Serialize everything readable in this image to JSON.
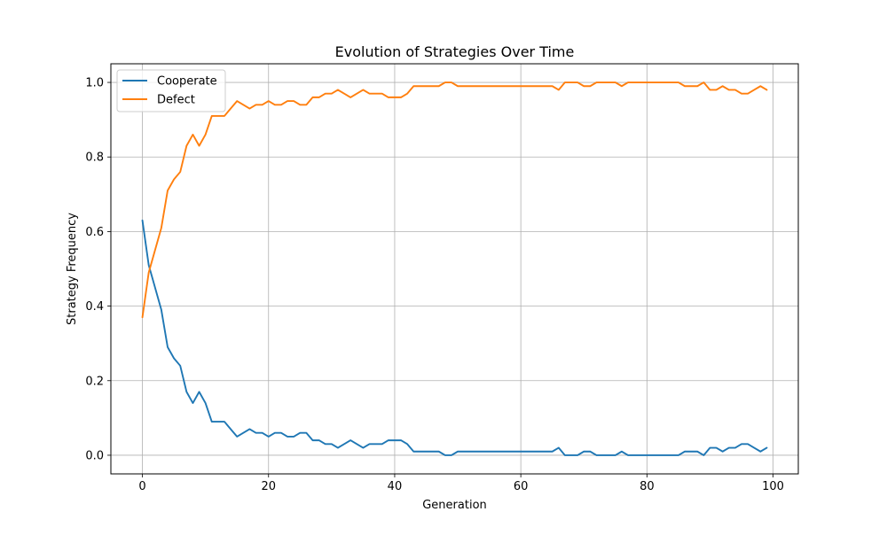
{
  "chart_data": {
    "type": "line",
    "title": "Evolution of Strategies Over Time",
    "xlabel": "Generation",
    "ylabel": "Strategy Frequency",
    "xlim": [
      -5,
      104
    ],
    "ylim": [
      -0.05,
      1.05
    ],
    "xticks": [
      0,
      20,
      40,
      60,
      80,
      100
    ],
    "yticks": [
      0.0,
      0.2,
      0.4,
      0.6,
      0.8,
      1.0
    ],
    "xtick_labels": [
      "0",
      "20",
      "40",
      "60",
      "80",
      "100"
    ],
    "ytick_labels": [
      "0.0",
      "0.2",
      "0.4",
      "0.6",
      "0.8",
      "1.0"
    ],
    "grid": true,
    "legend_position": "top-left",
    "x": [
      0,
      1,
      2,
      3,
      4,
      5,
      6,
      7,
      8,
      9,
      10,
      11,
      12,
      13,
      14,
      15,
      16,
      17,
      18,
      19,
      20,
      21,
      22,
      23,
      24,
      25,
      26,
      27,
      28,
      29,
      30,
      31,
      32,
      33,
      34,
      35,
      36,
      37,
      38,
      39,
      40,
      41,
      42,
      43,
      44,
      45,
      46,
      47,
      48,
      49,
      50,
      51,
      52,
      53,
      54,
      55,
      56,
      57,
      58,
      59,
      60,
      61,
      62,
      63,
      64,
      65,
      66,
      67,
      68,
      69,
      70,
      71,
      72,
      73,
      74,
      75,
      76,
      77,
      78,
      79,
      80,
      81,
      82,
      83,
      84,
      85,
      86,
      87,
      88,
      89,
      90,
      91,
      92,
      93,
      94,
      95,
      96,
      97,
      98,
      99
    ],
    "series": [
      {
        "name": "Cooperate",
        "color": "#1f77b4",
        "values": [
          0.63,
          0.51,
          0.45,
          0.39,
          0.29,
          0.26,
          0.24,
          0.17,
          0.14,
          0.17,
          0.14,
          0.09,
          0.09,
          0.09,
          0.07,
          0.05,
          0.06,
          0.07,
          0.06,
          0.06,
          0.05,
          0.06,
          0.06,
          0.05,
          0.05,
          0.06,
          0.06,
          0.04,
          0.04,
          0.03,
          0.03,
          0.02,
          0.03,
          0.04,
          0.03,
          0.02,
          0.03,
          0.03,
          0.03,
          0.04,
          0.04,
          0.04,
          0.03,
          0.01,
          0.01,
          0.01,
          0.01,
          0.01,
          0.0,
          0.0,
          0.01,
          0.01,
          0.01,
          0.01,
          0.01,
          0.01,
          0.01,
          0.01,
          0.01,
          0.01,
          0.01,
          0.01,
          0.01,
          0.01,
          0.01,
          0.01,
          0.02,
          0.0,
          0.0,
          0.0,
          0.01,
          0.01,
          0.0,
          0.0,
          0.0,
          0.0,
          0.01,
          0.0,
          0.0,
          0.0,
          0.0,
          0.0,
          0.0,
          0.0,
          0.0,
          0.0,
          0.01,
          0.01,
          0.01,
          0.0,
          0.02,
          0.02,
          0.01,
          0.02,
          0.02,
          0.03,
          0.03,
          0.02,
          0.01,
          0.02
        ]
      },
      {
        "name": "Defect",
        "color": "#ff7f0e",
        "values": [
          0.37,
          0.49,
          0.55,
          0.61,
          0.71,
          0.74,
          0.76,
          0.83,
          0.86,
          0.83,
          0.86,
          0.91,
          0.91,
          0.91,
          0.93,
          0.95,
          0.94,
          0.93,
          0.94,
          0.94,
          0.95,
          0.94,
          0.94,
          0.95,
          0.95,
          0.94,
          0.94,
          0.96,
          0.96,
          0.97,
          0.97,
          0.98,
          0.97,
          0.96,
          0.97,
          0.98,
          0.97,
          0.97,
          0.97,
          0.96,
          0.96,
          0.96,
          0.97,
          0.99,
          0.99,
          0.99,
          0.99,
          0.99,
          1.0,
          1.0,
          0.99,
          0.99,
          0.99,
          0.99,
          0.99,
          0.99,
          0.99,
          0.99,
          0.99,
          0.99,
          0.99,
          0.99,
          0.99,
          0.99,
          0.99,
          0.99,
          0.98,
          1.0,
          1.0,
          1.0,
          0.99,
          0.99,
          1.0,
          1.0,
          1.0,
          1.0,
          0.99,
          1.0,
          1.0,
          1.0,
          1.0,
          1.0,
          1.0,
          1.0,
          1.0,
          1.0,
          0.99,
          0.99,
          0.99,
          1.0,
          0.98,
          0.98,
          0.99,
          0.98,
          0.98,
          0.97,
          0.97,
          0.98,
          0.99,
          0.98
        ]
      }
    ]
  }
}
